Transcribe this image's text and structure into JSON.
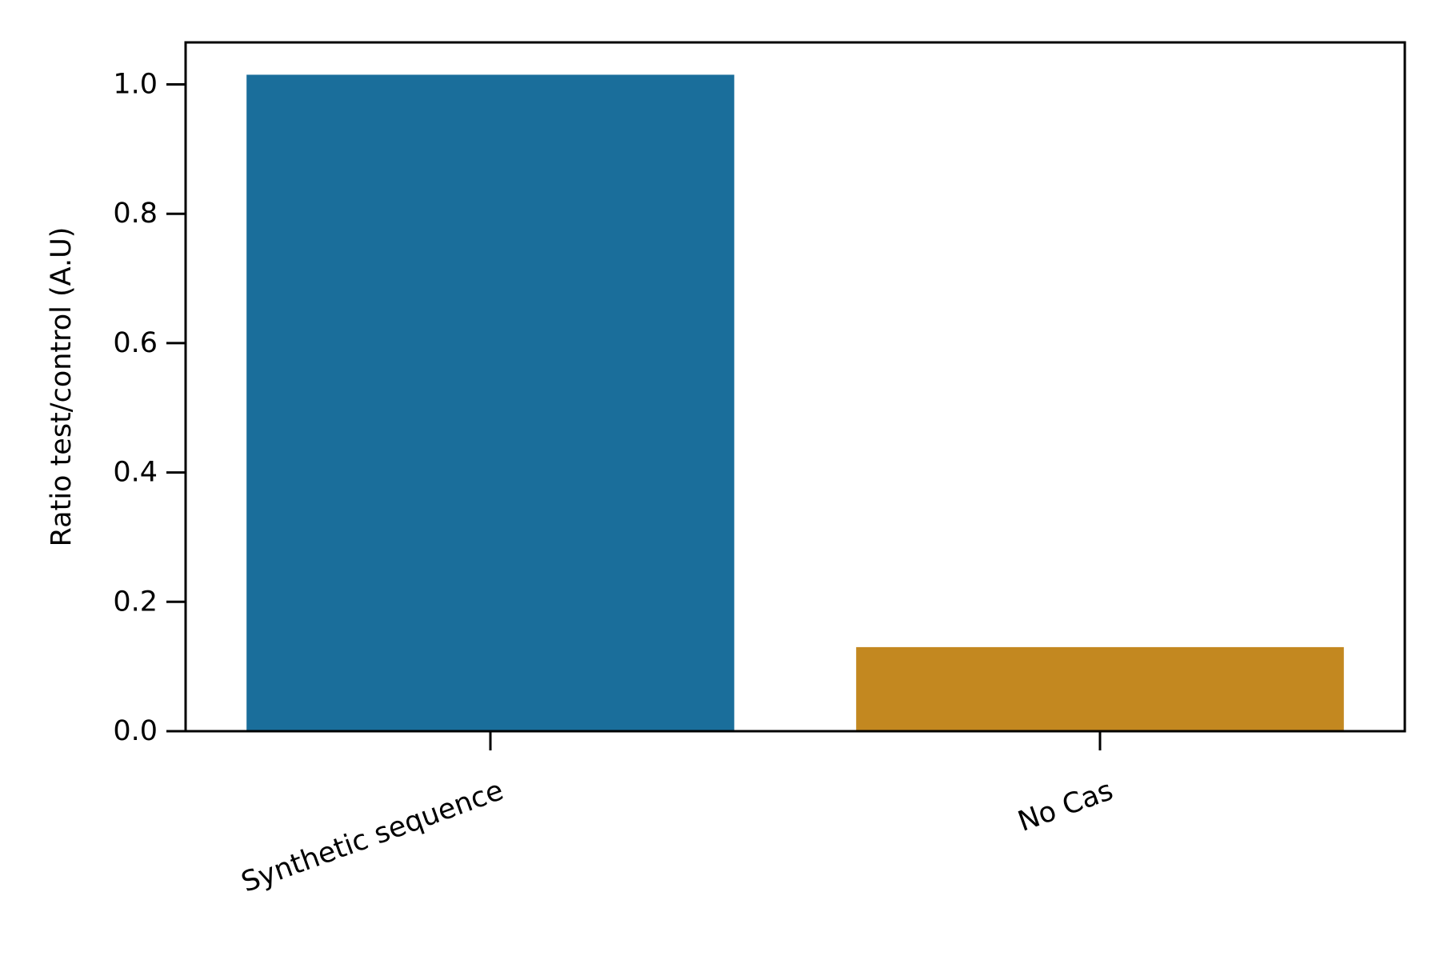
{
  "chart_data": {
    "type": "bar",
    "title": "",
    "xlabel": "",
    "ylabel": "Ratio test/control (A.U)",
    "categories": [
      "Synthetic sequence",
      "No Cas"
    ],
    "values": [
      1.015,
      0.13
    ],
    "colors": [
      "#1a6e9b",
      "#c38820"
    ],
    "ylim": [
      0,
      1.065
    ],
    "yticks": [
      0.0,
      0.2,
      0.4,
      0.6,
      0.8,
      1.0
    ],
    "ytick_labels": [
      "0.0",
      "0.2",
      "0.4",
      "0.6",
      "0.8",
      "1.0"
    ],
    "grid": false,
    "legend": "none"
  }
}
